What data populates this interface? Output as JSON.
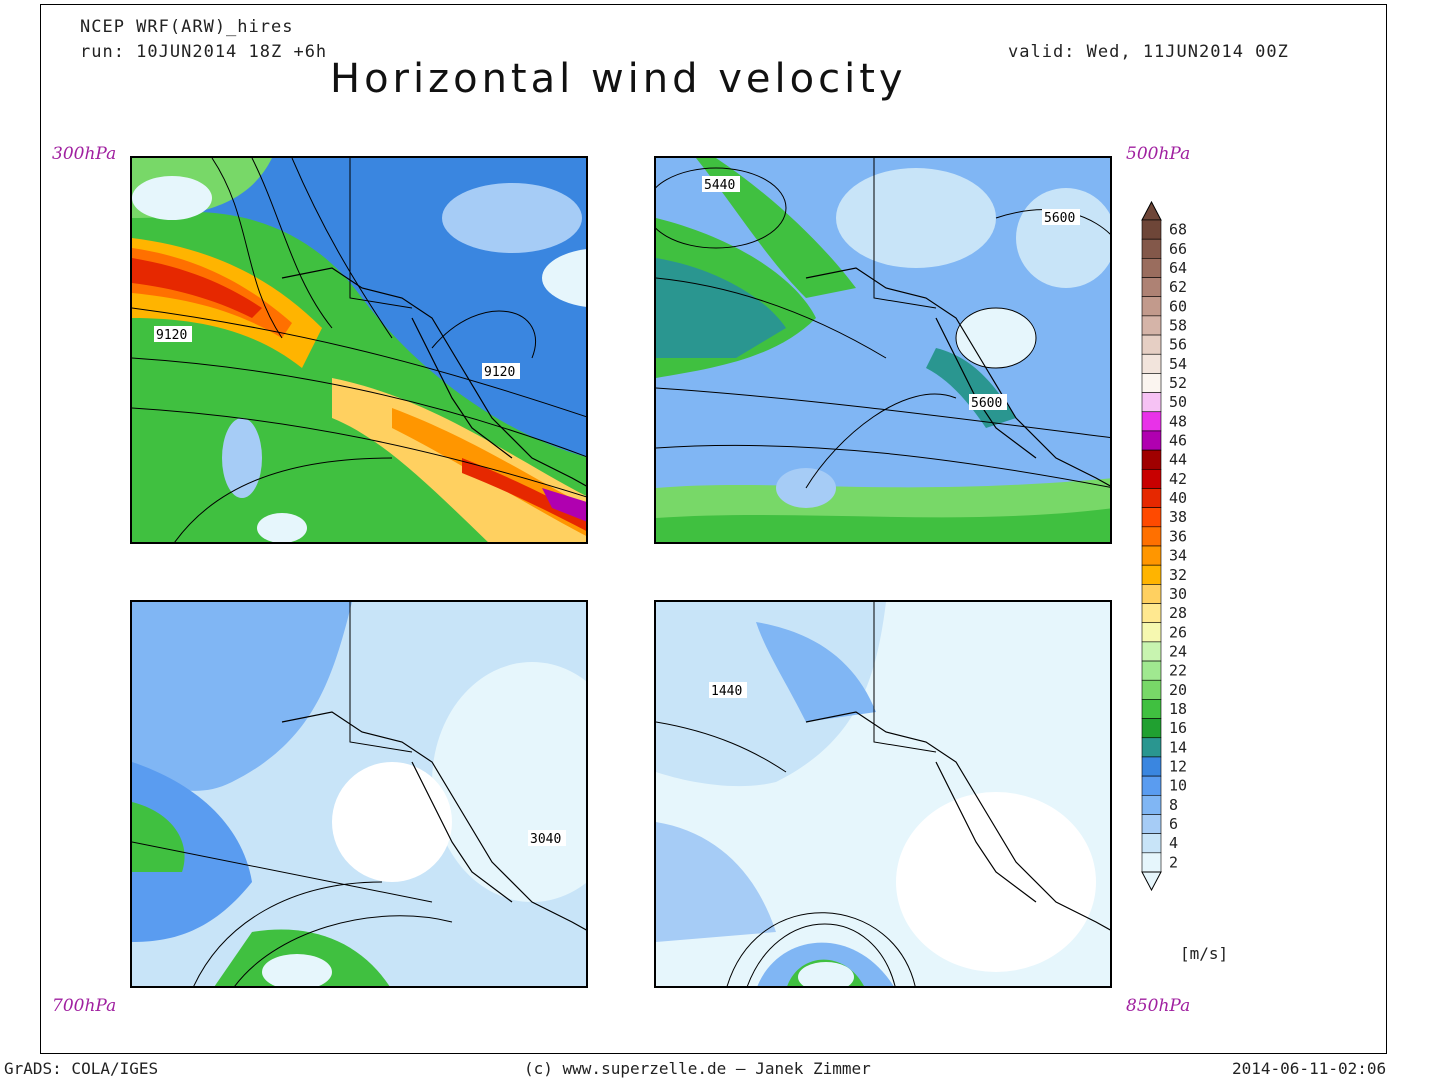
{
  "header": {
    "model": "NCEP WRF(ARW)_hires",
    "run": "run: 10JUN2014 18Z +6h",
    "valid": "valid: Wed, 11JUN2014 00Z",
    "title": "Horizontal wind velocity"
  },
  "panels": [
    {
      "level": "300hPa",
      "labels": [
        "9120",
        "9120"
      ]
    },
    {
      "level": "500hPa",
      "labels": [
        "5440",
        "5600",
        "5600"
      ]
    },
    {
      "level": "700hPa",
      "labels": [
        "3040"
      ]
    },
    {
      "level": "850hPa",
      "labels": [
        "1440"
      ]
    }
  ],
  "colorbar": {
    "unit": "[m/s]",
    "ticks": [
      "68",
      "66",
      "64",
      "62",
      "60",
      "58",
      "56",
      "54",
      "52",
      "50",
      "48",
      "46",
      "44",
      "42",
      "40",
      "38",
      "36",
      "34",
      "32",
      "30",
      "28",
      "26",
      "24",
      "22",
      "20",
      "18",
      "16",
      "14",
      "12",
      "10",
      "8",
      "6",
      "4",
      "2"
    ],
    "colors": [
      "#6e4638",
      "#83584a",
      "#9a6d5e",
      "#ae8274",
      "#c29a8c",
      "#d5b4a8",
      "#e6cfc4",
      "#f2e4dc",
      "#fbf5f0",
      "#f6c2f4",
      "#e832e8",
      "#b000b0",
      "#a00000",
      "#c80000",
      "#e62800",
      "#ff4a00",
      "#ff7000",
      "#ff9600",
      "#ffb400",
      "#ffd060",
      "#ffe890",
      "#f6f8b0",
      "#c8f4b0",
      "#a0e890",
      "#78d868",
      "#40c040",
      "#20a030",
      "#2a9690",
      "#3a86e0",
      "#5a9cf0",
      "#80b6f4",
      "#a6ccf6",
      "#c8e4f8",
      "#e6f6fc"
    ]
  },
  "footer": {
    "left": "GrADS: COLA/IGES",
    "center": "(c) www.superzelle.de – Janek Zimmer",
    "right": "2014-06-11-02:06"
  }
}
